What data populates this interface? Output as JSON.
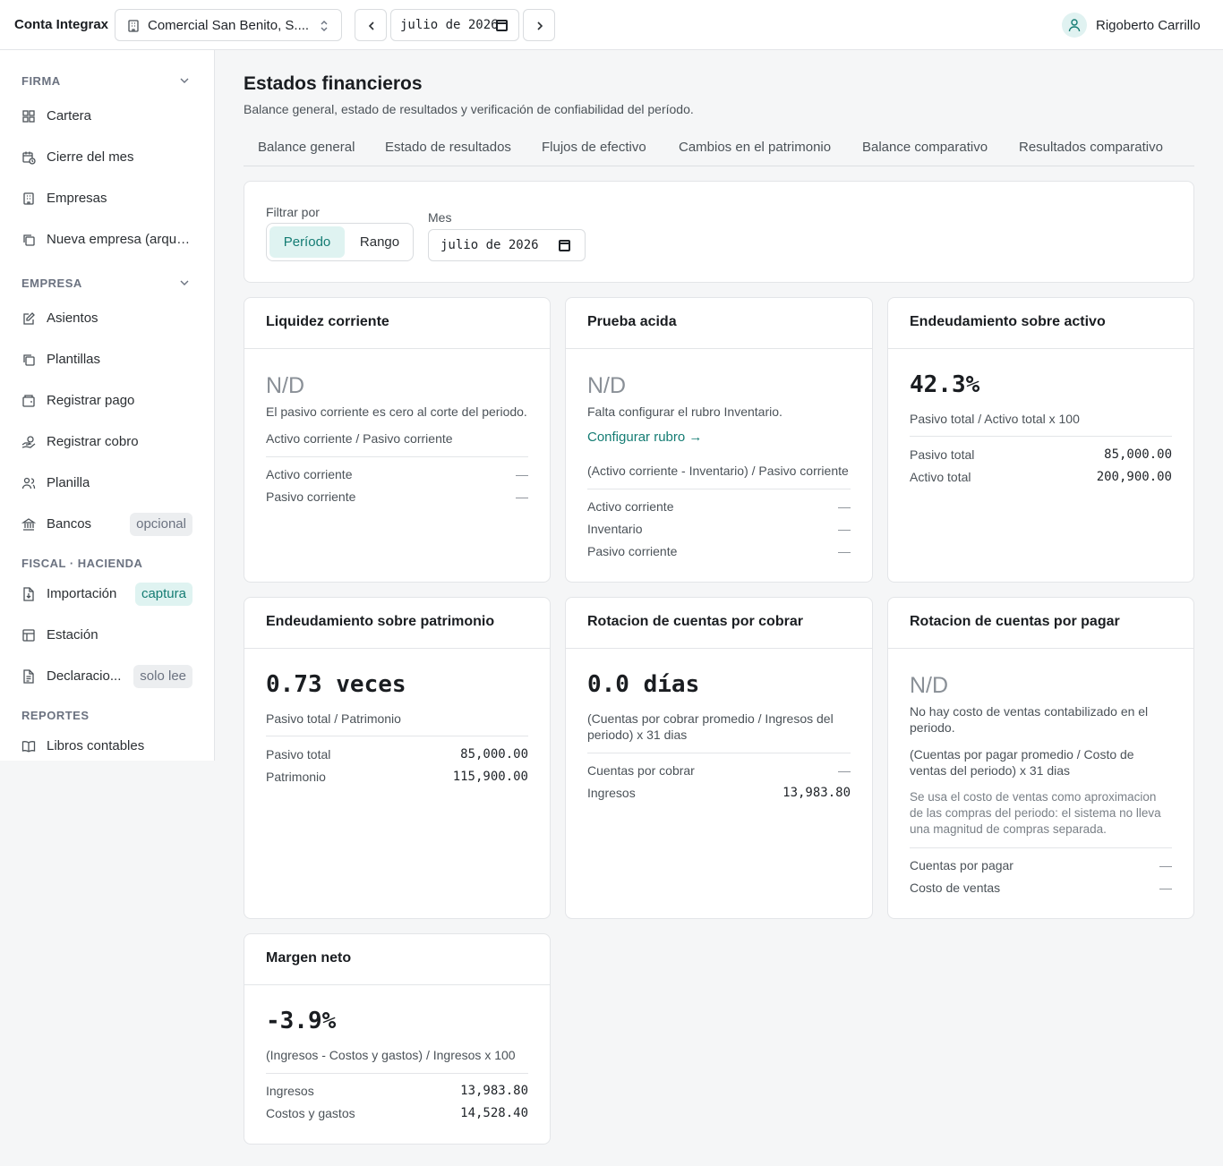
{
  "topbar": {
    "brand": "Conta Integrax",
    "company": "Comercial San Benito, S....",
    "date": "julio de 2026",
    "user": "Rigoberto Carrillo"
  },
  "sidebar": {
    "sections": [
      {
        "label": "FIRMA",
        "collapsible": true,
        "items": [
          {
            "label": "Cartera",
            "icon": "grid-icon"
          },
          {
            "label": "Cierre del mes",
            "icon": "calendar-clock-icon"
          },
          {
            "label": "Empresas",
            "icon": "building-icon"
          },
          {
            "label": "Nueva empresa (arque...",
            "icon": "copy-icon"
          }
        ]
      },
      {
        "label": "EMPRESA",
        "collapsible": true,
        "items": [
          {
            "label": "Asientos",
            "icon": "edit-icon"
          },
          {
            "label": "Plantillas",
            "icon": "copy-icon"
          },
          {
            "label": "Registrar pago",
            "icon": "wallet-icon"
          },
          {
            "label": "Registrar cobro",
            "icon": "hand-coins-icon"
          },
          {
            "label": "Planilla",
            "icon": "users-icon"
          },
          {
            "label": "Bancos",
            "icon": "bank-icon",
            "badge": "opcional",
            "badge_style": "gray"
          }
        ]
      },
      {
        "label": "FISCAL · HACIENDA",
        "collapsible": false,
        "items": [
          {
            "label": "Importación",
            "icon": "file-import-icon",
            "badge": "captura",
            "badge_style": "teal"
          },
          {
            "label": "Estación",
            "icon": "table-icon"
          },
          {
            "label": "Declaracio...",
            "icon": "file-text-icon",
            "badge": "solo lee",
            "badge_style": "gray"
          }
        ]
      },
      {
        "label": "REPORTES",
        "collapsible": false,
        "items": [
          {
            "label": "Libros contables",
            "icon": "book-open-icon"
          }
        ]
      }
    ]
  },
  "page": {
    "title": "Estados financieros",
    "subtitle": "Balance general, estado de resultados y verificación de confiabilidad del período."
  },
  "tabs": [
    "Balance general",
    "Estado de resultados",
    "Flujos de efectivo",
    "Cambios en el patrimonio",
    "Balance comparativo",
    "Resultados comparativo"
  ],
  "filter": {
    "label": "Filtrar por",
    "options": [
      "Período",
      "Rango"
    ],
    "selected": "Período",
    "mes_label": "Mes",
    "mes_value": "julio de 2026"
  },
  "cards": {
    "liquidez": {
      "title": "Liquidez corriente",
      "value": "N/D",
      "note": "El pasivo corriente es cero al corte del periodo.",
      "formula": "Activo corriente / Pasivo corriente",
      "rows": [
        {
          "label": "Activo corriente",
          "value": "—"
        },
        {
          "label": "Pasivo corriente",
          "value": "—"
        }
      ]
    },
    "prueba": {
      "title": "Prueba acida",
      "value": "N/D",
      "note": "Falta configurar el rubro Inventario.",
      "link": "Configurar rubro →",
      "formula": "(Activo corriente - Inventario) / Pasivo corriente",
      "rows": [
        {
          "label": "Activo corriente",
          "value": "—"
        },
        {
          "label": "Inventario",
          "value": "—"
        },
        {
          "label": "Pasivo corriente",
          "value": "—"
        }
      ]
    },
    "endeud_activo": {
      "title": "Endeudamiento sobre activo",
      "value": "42.3%",
      "formula": "Pasivo total / Activo total x 100",
      "rows": [
        {
          "label": "Pasivo total",
          "value": "85,000.00"
        },
        {
          "label": "Activo total",
          "value": "200,900.00"
        }
      ]
    },
    "endeud_patrimonio": {
      "title": "Endeudamiento sobre patrimonio",
      "value": "0.73 veces",
      "formula": "Pasivo total / Patrimonio",
      "rows": [
        {
          "label": "Pasivo total",
          "value": "85,000.00"
        },
        {
          "label": "Patrimonio",
          "value": "115,900.00"
        }
      ]
    },
    "rot_cobrar": {
      "title": "Rotacion de cuentas por cobrar",
      "value": "0.0 días",
      "formula": "(Cuentas por cobrar promedio / Ingresos del periodo) x 31 dias",
      "rows": [
        {
          "label": "Cuentas por cobrar",
          "value": "—"
        },
        {
          "label": "Ingresos",
          "value": "13,983.80"
        }
      ]
    },
    "rot_pagar": {
      "title": "Rotacion de cuentas por pagar",
      "value": "N/D",
      "note": "No hay costo de ventas contabilizado en el periodo.",
      "formula": "(Cuentas por pagar promedio / Costo de ventas del periodo) x 31 dias",
      "extra": "Se usa el costo de ventas como aproximacion de las compras del periodo: el sistema no lleva una magnitud de compras separada.",
      "rows": [
        {
          "label": "Cuentas por pagar",
          "value": "—"
        },
        {
          "label": "Costo de ventas",
          "value": "—"
        }
      ]
    },
    "margen": {
      "title": "Margen neto",
      "value": "-3.9%",
      "formula": "(Ingresos - Costos y gastos) / Ingresos x 100",
      "rows": [
        {
          "label": "Ingresos",
          "value": "13,983.80"
        },
        {
          "label": "Costos y gastos",
          "value": "14,528.40"
        }
      ]
    }
  },
  "colors": {
    "accent": "#147c73",
    "accent_bg": "#dff3f1",
    "border": "#e3e5e8",
    "background": "#f5f6f7"
  }
}
